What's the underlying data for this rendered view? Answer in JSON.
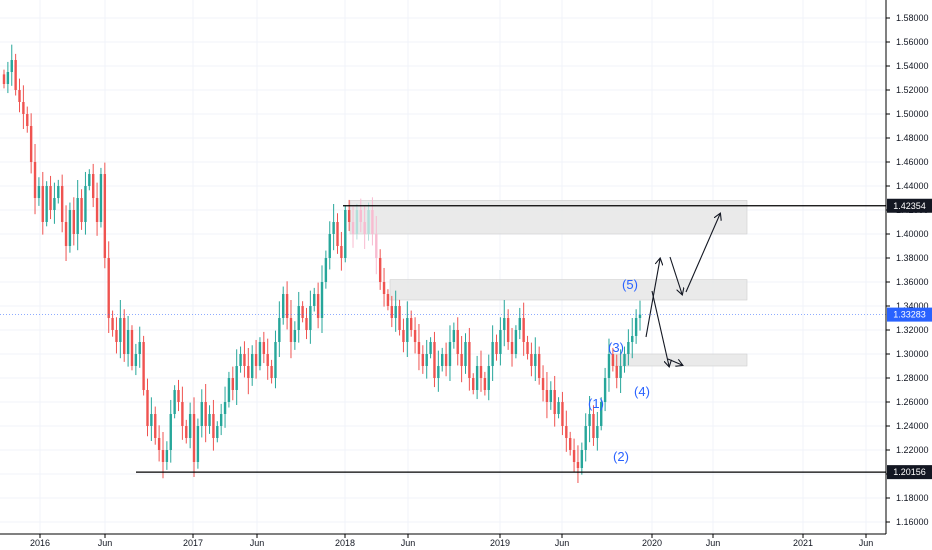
{
  "chart_data": {
    "type": "candlestick",
    "x_axis": {
      "tick_labels": [
        "2016",
        "Jun",
        "2017",
        "Jun",
        "2018",
        "Jun",
        "2019",
        "Jun",
        "2020",
        "Jun",
        "2021",
        "Jun"
      ]
    },
    "y_axis": {
      "ylim": [
        1.15,
        1.595
      ],
      "tick_values": [
        1.16,
        1.18,
        1.2,
        1.22,
        1.24,
        1.26,
        1.28,
        1.3,
        1.32,
        1.34,
        1.36,
        1.38,
        1.4,
        1.42,
        1.44,
        1.46,
        1.48,
        1.5,
        1.52,
        1.54,
        1.56,
        1.58
      ],
      "tick_labels": [
        "1.16000",
        "1.18000",
        "1.20000",
        "1.22000",
        "1.24000",
        "1.26000",
        "1.28000",
        "1.30000",
        "1.32000",
        "1.34000",
        "1.36000",
        "1.38000",
        "1.40000",
        "1.42000",
        "1.44000",
        "1.46000",
        "1.48000",
        "1.50000",
        "1.52000",
        "1.54000",
        "1.56000",
        "1.58000"
      ]
    },
    "closes": [
      1.525,
      1.535,
      1.545,
      1.52,
      1.51,
      1.5,
      1.49,
      1.46,
      1.43,
      1.44,
      1.41,
      1.44,
      1.42,
      1.43,
      1.44,
      1.41,
      1.39,
      1.42,
      1.4,
      1.43,
      1.41,
      1.44,
      1.45,
      1.43,
      1.41,
      1.45,
      1.38,
      1.33,
      1.32,
      1.31,
      1.33,
      1.3,
      1.32,
      1.29,
      1.3,
      1.31,
      1.27,
      1.24,
      1.25,
      1.23,
      1.22,
      1.21,
      1.22,
      1.25,
      1.27,
      1.26,
      1.24,
      1.23,
      1.25,
      1.21,
      1.24,
      1.26,
      1.24,
      1.25,
      1.23,
      1.24,
      1.25,
      1.26,
      1.28,
      1.27,
      1.29,
      1.3,
      1.29,
      1.28,
      1.3,
      1.29,
      1.31,
      1.3,
      1.29,
      1.28,
      1.31,
      1.33,
      1.35,
      1.33,
      1.31,
      1.32,
      1.34,
      1.33,
      1.32,
      1.34,
      1.35,
      1.33,
      1.36,
      1.38,
      1.4,
      1.41,
      1.39,
      1.38,
      1.42,
      1.41,
      1.4,
      1.42,
      1.41,
      1.4,
      1.42,
      1.4,
      1.38,
      1.36,
      1.35,
      1.34,
      1.33,
      1.34,
      1.32,
      1.31,
      1.33,
      1.32,
      1.31,
      1.3,
      1.29,
      1.3,
      1.31,
      1.28,
      1.29,
      1.3,
      1.29,
      1.31,
      1.32,
      1.3,
      1.29,
      1.31,
      1.28,
      1.27,
      1.29,
      1.28,
      1.27,
      1.29,
      1.31,
      1.3,
      1.32,
      1.33,
      1.31,
      1.3,
      1.32,
      1.33,
      1.31,
      1.3,
      1.29,
      1.3,
      1.28,
      1.27,
      1.26,
      1.27,
      1.25,
      1.26,
      1.24,
      1.23,
      1.22,
      1.21,
      1.205,
      1.22,
      1.24,
      1.25,
      1.23,
      1.24,
      1.26,
      1.28,
      1.3,
      1.29,
      1.28,
      1.29,
      1.3,
      1.31,
      1.315,
      1.33,
      1.3328
    ],
    "horizontal_levels": [
      {
        "value": 1.42354,
        "label": "1.42354"
      },
      {
        "value": 1.20156,
        "label": "1.20156"
      }
    ],
    "current_price": {
      "value": 1.33283,
      "label": "1.33283"
    },
    "zones": [
      {
        "y_top": 1.428,
        "y_bottom": 1.4
      },
      {
        "y_top": 1.362,
        "y_bottom": 1.345
      },
      {
        "y_top": 1.3,
        "y_bottom": 1.29
      }
    ],
    "wave_labels": [
      "(1)",
      "(2)",
      "(3)",
      "(4)",
      "(5)"
    ],
    "colors": {
      "up": "#26a69a",
      "down": "#ef5350",
      "up_hist": "#b2dfdb",
      "down_hist": "#f8bbd0",
      "zone": "#e6e6e6",
      "wave_label": "#2962ff",
      "current_price": "#2962ff",
      "level_tag": "#131722",
      "grid": "#f0f3fa",
      "axis": "#000000"
    }
  }
}
